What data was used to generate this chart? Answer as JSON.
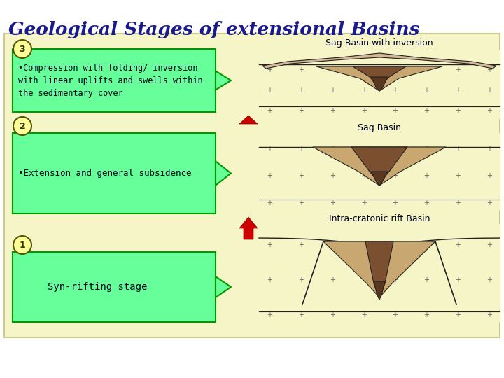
{
  "title": "Geological Stages of extensional Basins",
  "title_color": "#1a1a8c",
  "title_fontsize": 19,
  "bg_color": "#f5f5c8",
  "box_color": "#66ff99",
  "box_edge_color": "#009900",
  "stage_circle_bg": "#ffff99",
  "stage_circle_edge": "#555500",
  "box1_text": "•Compression with folding/ inversion\nwith linear uplifts and swells within\nthe sedimentary cover",
  "box2_text": "•Extension and general subsidence",
  "box3_text": "Syn-rifting stage",
  "label1": "Sag Basin with inversion",
  "label2": "Sag Basin",
  "label3": "Intra-cratonic rift Basin",
  "arrow_color": "#cc0000",
  "text_color": "#000022",
  "dark_blue": "#1a1a8c",
  "granite_color": "#c8a870",
  "granite_light": "#d4b896",
  "dark_brown": "#7a5030",
  "darker_brown": "#5a3820",
  "line_color": "#222222",
  "plus_color": "#666666",
  "panel_bg": "#f5f5c8"
}
